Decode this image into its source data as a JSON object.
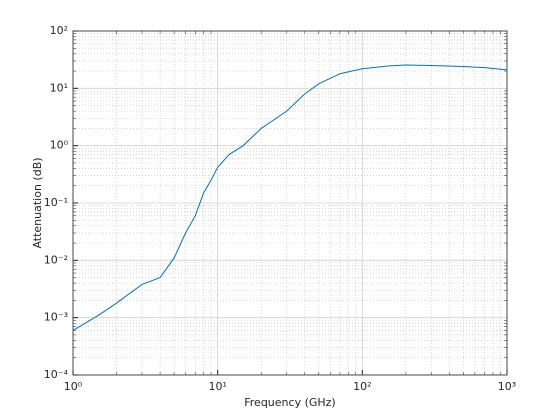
{
  "chart_data": {
    "type": "line",
    "xlabel": "Frequency (GHz)",
    "ylabel": "Attenuation (dB)",
    "x": [
      1,
      1.5,
      2,
      3,
      4,
      5,
      6,
      7,
      8,
      9,
      10,
      12,
      15,
      20,
      30,
      40,
      50,
      70,
      100,
      150,
      200,
      300,
      500,
      700,
      1000
    ],
    "series": [
      {
        "color": "#0072bd",
        "values": [
          0.0006,
          0.0011,
          0.0018,
          0.0038,
          0.005,
          0.011,
          0.03,
          0.06,
          0.15,
          0.25,
          0.42,
          0.7,
          1.0,
          2.0,
          4.0,
          8.0,
          12,
          18,
          22,
          24.5,
          25.5,
          25,
          24,
          23,
          21
        ]
      }
    ],
    "xscale": "log",
    "yscale": "log",
    "xlim": [
      1,
      1000
    ],
    "ylim": [
      0.0001,
      100
    ],
    "xticks": [
      {
        "value": 1,
        "label": "10⁰"
      },
      {
        "value": 10,
        "label": "10¹"
      },
      {
        "value": 100,
        "label": "10²"
      },
      {
        "value": 1000,
        "label": "10³"
      }
    ],
    "yticks": [
      {
        "value": 0.0001,
        "label": "10⁻⁴"
      },
      {
        "value": 0.001,
        "label": "10⁻³"
      },
      {
        "value": 0.01,
        "label": "10⁻²"
      },
      {
        "value": 0.1,
        "label": "10⁻¹"
      },
      {
        "value": 1,
        "label": "10⁰"
      },
      {
        "value": 10,
        "label": "10¹"
      },
      {
        "value": 100,
        "label": "10²"
      }
    ],
    "grid": true,
    "minor_grid": true
  }
}
